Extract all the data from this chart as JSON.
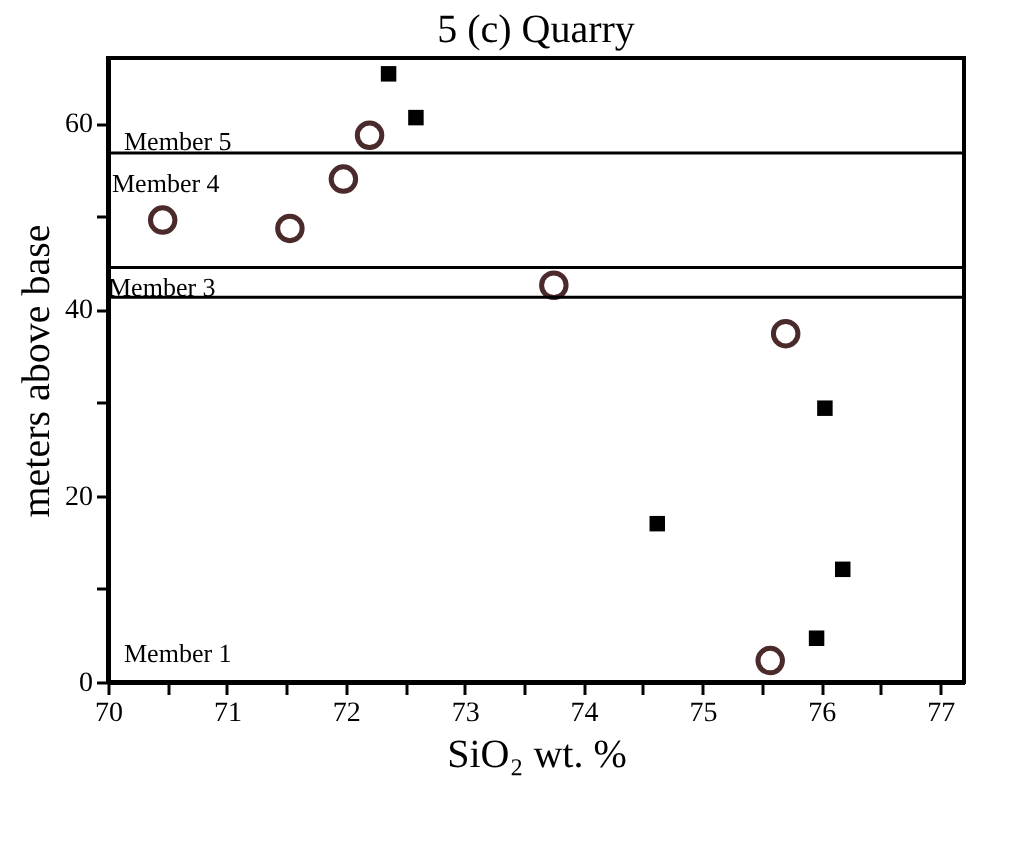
{
  "chart_data": {
    "type": "scatter",
    "title": "5 (c)  Quarry",
    "xlabel": "SiO₂  wt. %",
    "ylabel": "meters above base",
    "series": [
      {
        "type": "scatter",
        "marker": "square",
        "color": "#000000",
        "x": [
          72.36,
          72.59,
          74.62,
          76.03,
          76.18,
          75.96
        ],
        "values": [
          65.3,
          60.6,
          17.0,
          29.4,
          12.1,
          4.7
        ]
      },
      {
        "type": "scatter",
        "marker": "circle",
        "color": "#4a2a2a",
        "x": [
          70.46,
          71.53,
          71.98,
          72.2,
          73.75,
          75.7,
          75.57
        ],
        "values": [
          49.6,
          48.7,
          54.0,
          58.7,
          42.6,
          37.4,
          2.3
        ]
      }
    ],
    "xlim": [
      70,
      77.2
    ],
    "ylim": [
      0,
      67
    ],
    "xticks": [
      70,
      {
        "value": 70.5,
        "label": null
      },
      71,
      {
        "value": 71.5,
        "label": null
      },
      72,
      {
        "value": 72.5,
        "label": null
      },
      73,
      {
        "value": 73.5,
        "label": null
      },
      74,
      {
        "value": 74.5,
        "label": null
      },
      75,
      {
        "value": 75.5,
        "label": null
      },
      76,
      {
        "value": 76.5,
        "label": null
      },
      77
    ],
    "yticks": [
      0,
      {
        "value": 10,
        "label": null
      },
      20,
      {
        "value": 30,
        "label": null
      },
      40,
      {
        "value": 50,
        "label": null
      },
      60
    ],
    "ref_lines": [
      {
        "axis": "y",
        "value": 56.8,
        "color": "#000000"
      },
      {
        "axis": "y",
        "value": 44.5,
        "color": "#000000"
      },
      {
        "axis": "y",
        "value": 41.3,
        "color": "#000000"
      }
    ],
    "annotations": [
      "Member 5",
      "Member 4",
      "Member 3",
      "Member 1"
    ],
    "grid": false
  }
}
